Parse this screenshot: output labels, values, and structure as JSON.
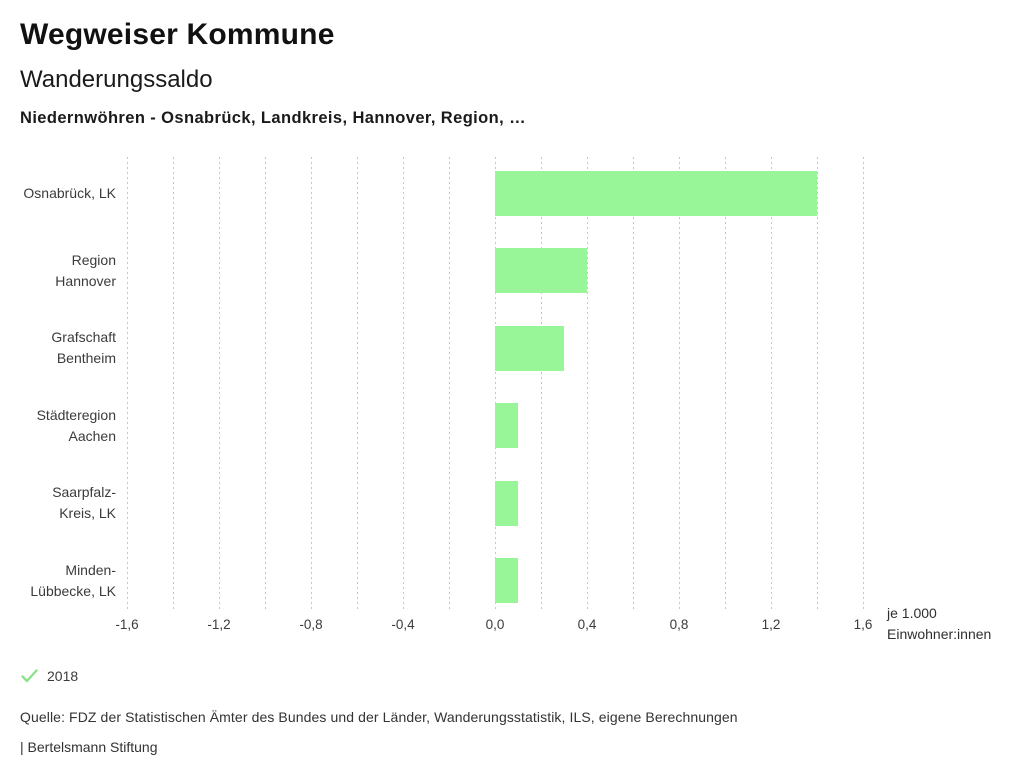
{
  "header": {
    "title": "Wegweiser Kommune",
    "subtitle": "Wanderungssaldo",
    "selection": "Niedernwöhren - Osnabrück, Landkreis, Hannover, Region, …"
  },
  "chart_data": {
    "type": "bar",
    "orientation": "horizontal",
    "title": "Wanderungssaldo",
    "categories": [
      "Osnabrück, LK",
      "Region Hannover",
      "Grafschaft Bentheim",
      "Städteregion Aachen",
      "Saarpfalz-Kreis, LK",
      "Minden-Lübbecke, LK"
    ],
    "category_lines": [
      [
        "Osnabrück, LK"
      ],
      [
        "Region",
        "Hannover"
      ],
      [
        "Grafschaft",
        "Bentheim"
      ],
      [
        "Städteregion",
        "Aachen"
      ],
      [
        "Saarpfalz-",
        "Kreis, LK"
      ],
      [
        "Minden-",
        "Lübbecke, LK"
      ]
    ],
    "series": [
      {
        "name": "2018",
        "values": [
          1.4,
          0.4,
          0.3,
          0.1,
          0.1,
          0.1
        ]
      }
    ],
    "xlim": [
      -1.6,
      1.6
    ],
    "x_ticks": [
      -1.6,
      -1.2,
      -0.8,
      -0.4,
      0.0,
      0.4,
      0.8,
      1.2,
      1.6
    ],
    "x_tick_labels": [
      "-1,6",
      "-1,2",
      "-0,8",
      "-0,4",
      "0,0",
      "0,4",
      "0,8",
      "1,2",
      "1,6"
    ],
    "minor_grid_step": 0.2,
    "grid": true,
    "xlabel_lines": [
      "je 1.000",
      "Einwohner:innen"
    ],
    "legend": [
      {
        "label": "2018",
        "marker": "check-icon"
      }
    ],
    "colors": {
      "bar": "#98f698",
      "legend_check": "#8ce28c",
      "gridline": "#c6c6c6"
    }
  },
  "footer": {
    "source": "Quelle: FDZ der Statistischen Ämter des Bundes und der Länder, Wanderungsstatistik, ILS, eigene Berechnungen",
    "attribution": "| Bertelsmann Stiftung"
  }
}
